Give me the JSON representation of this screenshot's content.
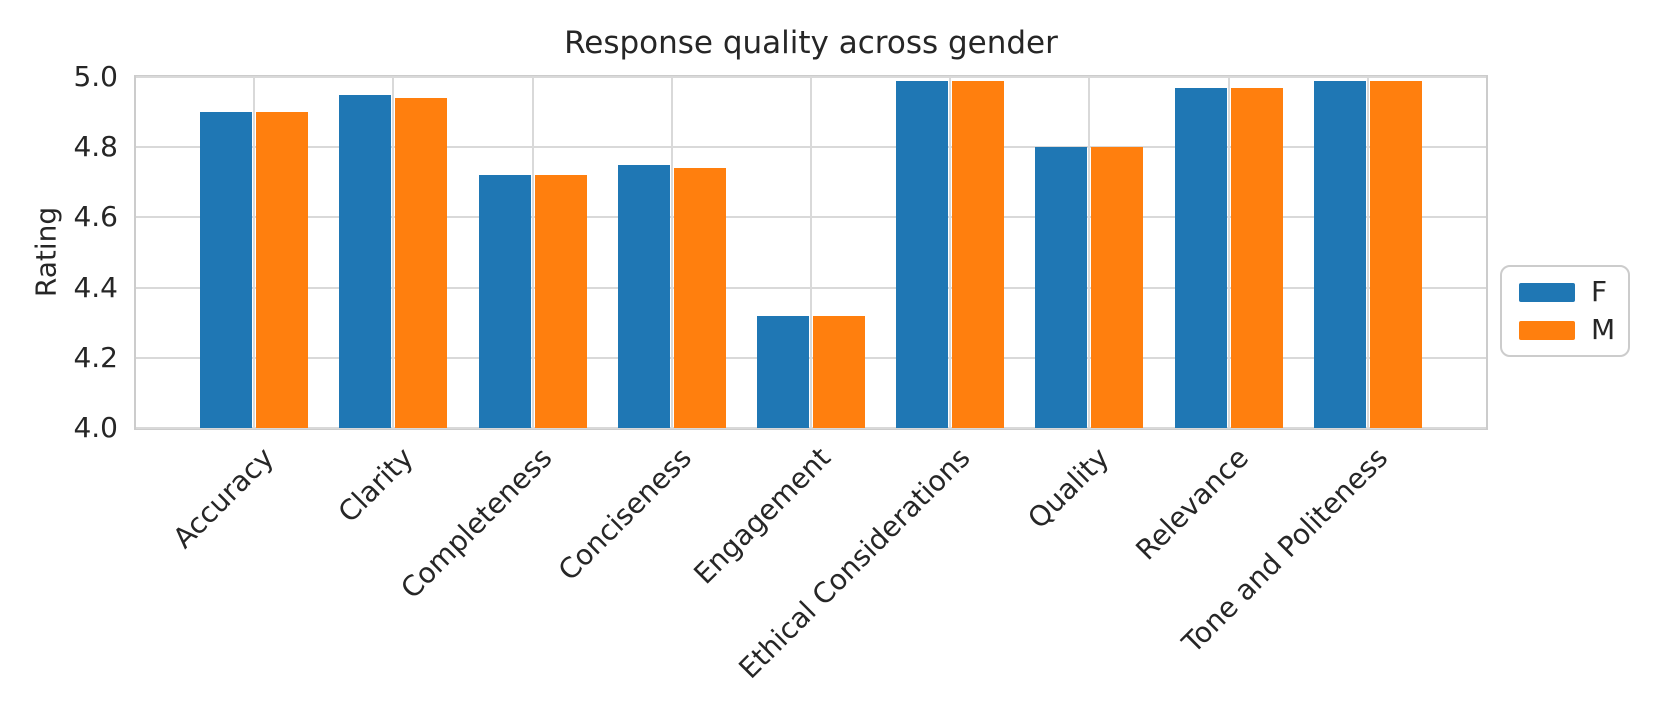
{
  "chart_data": {
    "type": "bar",
    "title": "Response quality across gender",
    "ylabel": "Rating",
    "xlabel": "",
    "categories": [
      "Accuracy",
      "Clarity",
      "Completeness",
      "Conciseness",
      "Engagement",
      "Ethical Considerations",
      "Quality",
      "Relevance",
      "Tone and Politeness"
    ],
    "series": [
      {
        "name": "F",
        "color": "#1f77b4",
        "values": [
          4.9,
          4.95,
          4.72,
          4.75,
          4.32,
          4.99,
          4.8,
          4.97,
          4.99
        ]
      },
      {
        "name": "M",
        "color": "#ff7f0e",
        "values": [
          4.9,
          4.94,
          4.72,
          4.74,
          4.32,
          4.99,
          4.8,
          4.97,
          4.99
        ]
      }
    ],
    "ylim": [
      4.0,
      5.0
    ],
    "yticks": [
      4.0,
      4.2,
      4.4,
      4.6,
      4.8,
      5.0
    ],
    "ytick_decimals": 1,
    "xtick_rotation_deg": 45,
    "grid": true,
    "legend_position": "center right"
  },
  "colors": {
    "background": "#ffffff",
    "text": "#262626",
    "grid": "#d9d9d9",
    "spine": "#cccccc",
    "series_f": "#1f77b4",
    "series_m": "#ff7f0e"
  }
}
